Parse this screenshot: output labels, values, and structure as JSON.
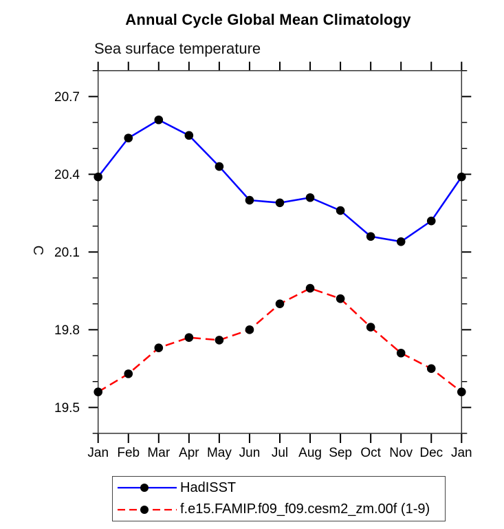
{
  "header": {
    "title": "Annual Cycle Global Mean Climatology",
    "subtitle": "Sea surface temperature"
  },
  "chart_data": {
    "type": "line",
    "title": "Annual Cycle Global Mean Climatology",
    "subtitle": "Sea surface temperature",
    "xlabel": "",
    "ylabel": "C",
    "categories": [
      "Jan",
      "Feb",
      "Mar",
      "Apr",
      "May",
      "Jun",
      "Jul",
      "Aug",
      "Sep",
      "Oct",
      "Nov",
      "Dec",
      "Jan"
    ],
    "series": [
      {
        "name": "HadISST",
        "color": "#0000ff",
        "line_style": "solid",
        "marker": "circle",
        "marker_color": "#000000",
        "values": [
          20.39,
          20.54,
          20.61,
          20.55,
          20.43,
          20.3,
          20.29,
          20.31,
          20.26,
          20.16,
          20.14,
          20.22,
          20.39
        ]
      },
      {
        "name": "f.e15.FAMIP.f09_f09.cesm2_zm.00f (1-9)",
        "color": "#ff0000",
        "line_style": "dashed",
        "marker": "circle",
        "marker_color": "#000000",
        "values": [
          19.56,
          19.63,
          19.73,
          19.77,
          19.76,
          19.8,
          19.9,
          19.96,
          19.92,
          19.81,
          19.71,
          19.65,
          19.56
        ]
      }
    ],
    "ylim": [
      19.4,
      20.8
    ],
    "yticks": [
      19.5,
      19.8,
      20.1,
      20.4,
      20.7
    ],
    "minor_tick_step": 0.1,
    "grid": false,
    "legend_position": "bottom",
    "tick_direction": "out"
  }
}
